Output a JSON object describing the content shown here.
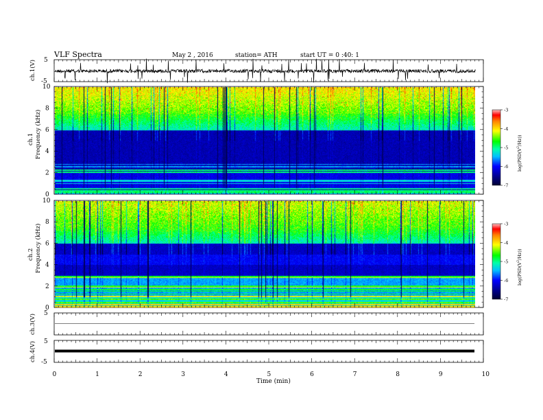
{
  "header": {
    "title": "VLF  Spectra",
    "date": "May 2 , 2016",
    "station": "station= ATH",
    "start": "start  UT =   0 :40: 1"
  },
  "chart_data": [
    {
      "type": "line",
      "ylabel": "ch.1(V)",
      "ylim": [
        -5,
        5
      ],
      "y_ticks": [
        "5",
        "-5"
      ],
      "baseline": 0,
      "style": "noisy waveform with frequent spikes"
    },
    {
      "type": "heatmap",
      "ylabel_top": "ch.1",
      "ylabel": "Frequency  (kHz)",
      "ylim": [
        0,
        10
      ],
      "y_ticks": [
        "0",
        "2",
        "4",
        "6",
        "8",
        "10"
      ],
      "colorbar": {
        "label": "log(PSD(V^2/Hz))",
        "range": [
          -7,
          -3
        ],
        "ticks": [
          "-3",
          "-4",
          "-5",
          "-6",
          "-7"
        ]
      },
      "structure": "dark blue 0-6 kHz with horizontal interference lines, cyan/green/yellow with red patches above 6 kHz, many vertical sferic streaks"
    },
    {
      "type": "heatmap",
      "ylabel_top": "ch.2",
      "ylabel": "Frequency  (kHz)",
      "ylim": [
        0,
        10
      ],
      "y_ticks": [
        "0",
        "2",
        "4",
        "6",
        "8",
        "10"
      ],
      "colorbar": {
        "label": "log(PSD(V^2/Hz))",
        "range": [
          -7,
          -3
        ],
        "ticks": [
          "-3",
          "-4",
          "-5",
          "-6",
          "-7"
        ]
      },
      "structure": "cyan/green below 3 kHz, dark blue bands 3-6 kHz, green/yellow above 6 kHz, many vertical sferic streaks"
    },
    {
      "type": "line",
      "ylabel": "ch.3(V)",
      "ylim": [
        -5,
        5
      ],
      "y_ticks": [
        "5",
        "-5"
      ],
      "baseline": 0,
      "style": "thin flat line"
    },
    {
      "type": "line",
      "ylabel": "ch.4(V)",
      "ylim": [
        -5,
        5
      ],
      "y_ticks": [
        "5",
        "-5"
      ],
      "baseline": 0,
      "style": "thick flat line"
    }
  ],
  "x_axis": {
    "label": "Time  (min)",
    "xlim": [
      0,
      10
    ],
    "ticks": [
      "0",
      "1",
      "2",
      "3",
      "4",
      "5",
      "6",
      "7",
      "8",
      "9",
      "10"
    ],
    "data_end": 9.82
  }
}
